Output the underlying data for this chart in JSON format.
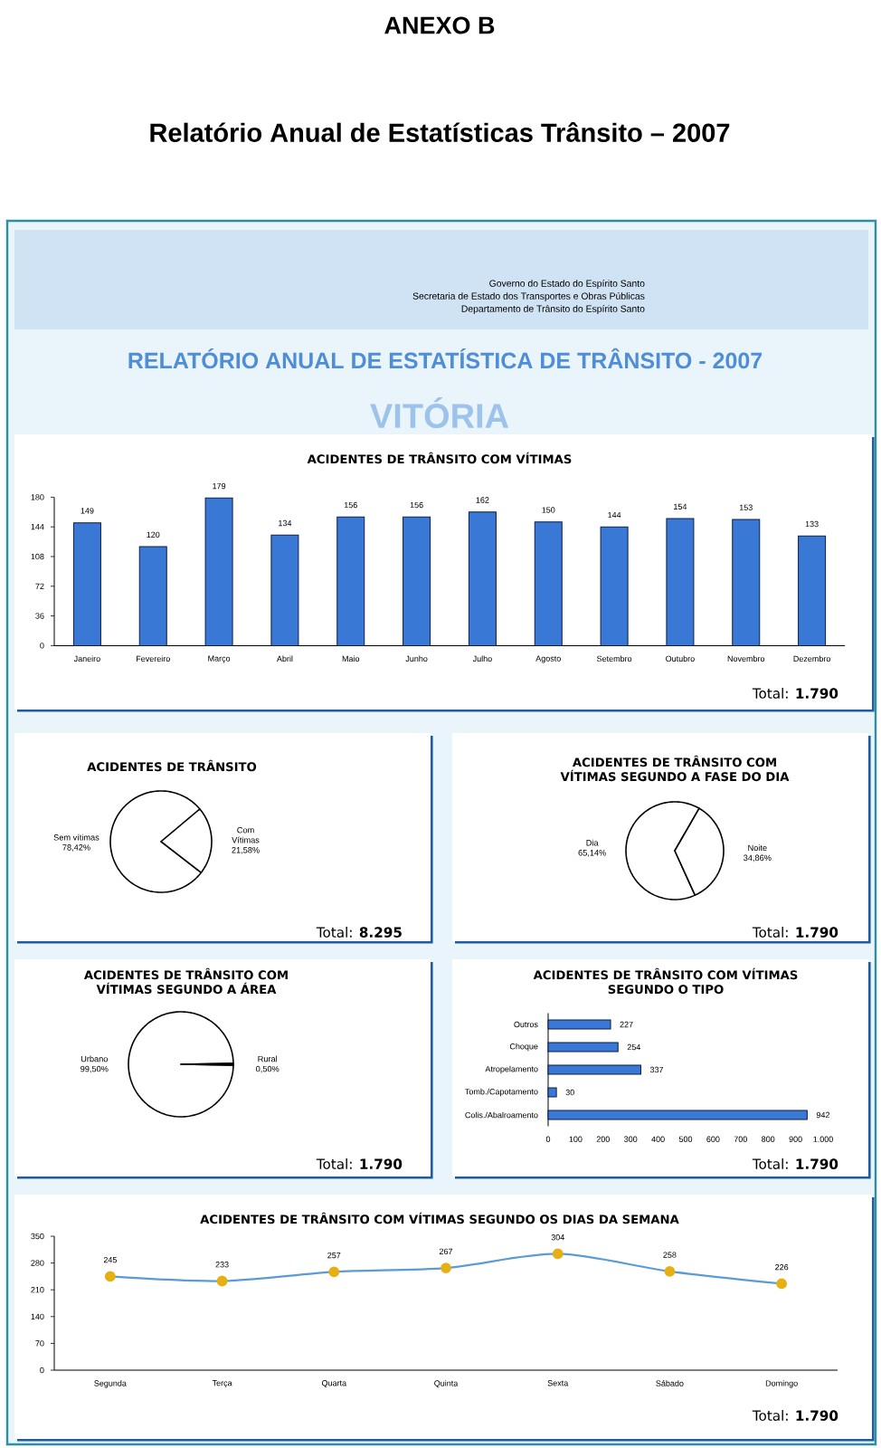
{
  "chart_data": [
    {
      "type": "other",
      "title": "ANEXO B",
      "subtitle": "Relatório Anual de Estatísticas Trânsito – 2007",
      "annotations": [
        "Governo do Estado do Espírito Santo",
        "Secretaria de Estado dos Transportes e Obras Públicas",
        "Departamento de Trânsito do Espírito Santo",
        "RELATÓRIO ANUAL DE ESTATÍSTICA DE TRÂNSITO - 2007",
        "VITÓRIA"
      ]
    },
    {
      "type": "bar",
      "title": "ACIDENTES DE TRÂNSITO COM VÍTIMAS",
      "categories": [
        "Janeiro",
        "Fevereiro",
        "Março",
        "Abril",
        "Maio",
        "Junho",
        "Julho",
        "Agosto",
        "Setembro",
        "Outubro",
        "Novembro",
        "Dezembro"
      ],
      "values": [
        149,
        120,
        179,
        134,
        156,
        156,
        162,
        150,
        144,
        154,
        153,
        133
      ],
      "color": "#3a78d6",
      "ylim": [
        0,
        180
      ],
      "yticks": [
        0,
        36,
        72,
        108,
        144,
        180
      ],
      "data_labels": true,
      "annotations": [
        "Total: **1.790**"
      ]
    },
    {
      "type": "pie",
      "title": "ACIDENTES DE TRÂNSITO",
      "categories": [
        "Sem vítimas",
        "Com Vítimas"
      ],
      "values": [
        78.42,
        21.58
      ],
      "colors": [
        "#ffffff",
        "#ffffff"
      ],
      "value_labels": [
        "78,42%",
        "21,58%"
      ],
      "annotations": [
        "Total: **8.295**"
      ]
    },
    {
      "type": "pie",
      "title": "ACIDENTES DE TRÂNSITO COM VÍTIMAS SEGUNDO A FASE DO DIA",
      "categories": [
        "Dia",
        "Noite"
      ],
      "values": [
        65.14,
        34.86
      ],
      "colors": [
        "#ffffff",
        "#ffffff"
      ],
      "value_labels": [
        "65,14%",
        "34,86%"
      ],
      "annotations": [
        "Total: **1.790**"
      ]
    },
    {
      "type": "pie",
      "title": "ACIDENTES DE TRÂNSITO COM VÍTIMAS SEGUNDO A ÁREA",
      "categories": [
        "Urbano",
        "Rural"
      ],
      "values": [
        99.5,
        0.5
      ],
      "colors": [
        "#ffffff",
        "#ffffff"
      ],
      "value_labels": [
        "99,50%",
        "0,50%"
      ],
      "annotations": [
        "Total: **1.790**"
      ]
    },
    {
      "type": "bar",
      "orientation": "horizontal",
      "title": "ACIDENTES DE TRÂNSITO COM VÍTIMAS SEGUNDO O TIPO",
      "categories": [
        "Outros",
        "Choque",
        "Atropelamento",
        "Tomb./Capotamento",
        "Colis./Abalroamento"
      ],
      "values": [
        227,
        254,
        337,
        30,
        942
      ],
      "color": "#3a78d6",
      "xlim": [
        0,
        1000
      ],
      "xticks": [
        0,
        100,
        200,
        300,
        400,
        500,
        600,
        700,
        800,
        900,
        {
          "value": 1000,
          "label": "1.000"
        }
      ],
      "data_labels": true,
      "annotations": [
        "Total: **1.790**"
      ]
    },
    {
      "type": "line",
      "title": "ACIDENTES DE TRÂNSITO COM VÍTIMAS SEGUNDO OS DIAS DA SEMANA",
      "categories": [
        "Segunda",
        "Terça",
        "Quarta",
        "Quinta",
        "Sexta",
        "Sábado",
        "Domingo"
      ],
      "values": [
        245,
        233,
        257,
        267,
        304,
        258,
        226
      ],
      "color": "#5b9bd5",
      "colors": [
        "#e6b012",
        "#e6b012",
        "#e6b012",
        "#e6b012",
        "#e6b012",
        "#e6b012",
        "#e6b012"
      ],
      "marker": "circle",
      "ylim": [
        0,
        350
      ],
      "yticks": [
        0,
        70,
        140,
        210,
        280,
        350
      ],
      "data_labels": true,
      "annotations": [
        "Total: **1.790**"
      ]
    }
  ]
}
